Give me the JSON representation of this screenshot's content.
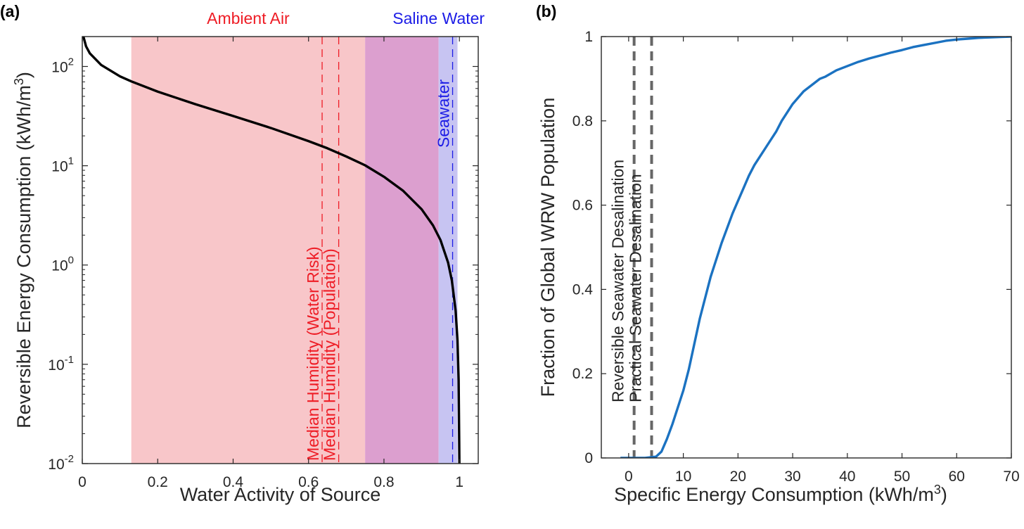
{
  "chart_data": [
    {
      "panel": "(a)",
      "type": "line",
      "xlabel": "Water Activity of Source",
      "ylabel_main": "Reversible Energy Consumption (kWh/m",
      "ylabel_sup": "3",
      "ylabel_close": ")",
      "yscale": "log",
      "xlim": [
        0,
        1.05
      ],
      "ylim": [
        0.01,
        200
      ],
      "xticks": [
        {
          "value": 0,
          "label": "0"
        },
        {
          "value": 0.2,
          "label": "0.2"
        },
        {
          "value": 0.4,
          "label": "0.4"
        },
        {
          "value": 0.6,
          "label": "0.6"
        },
        {
          "value": 0.8,
          "label": "0.8"
        },
        {
          "value": 1,
          "label": "1"
        }
      ],
      "yticks": [
        {
          "value": 100,
          "base": "10",
          "exp": "2"
        },
        {
          "value": 10,
          "base": "10",
          "exp": "1"
        },
        {
          "value": 1,
          "base": "10",
          "exp": "0"
        },
        {
          "value": 0.1,
          "base": "10",
          "exp": "-1"
        },
        {
          "value": 0.01,
          "base": "10",
          "exp": "-2"
        }
      ],
      "shaded_regions": [
        {
          "label": "Ambient Air",
          "from": 0.13,
          "to": 0.75,
          "color": "#f8c6c9"
        },
        {
          "label": "",
          "from": 0.75,
          "to": 0.945,
          "color": "#dc9fcf"
        },
        {
          "label": "Saline Water",
          "from": 0.945,
          "to": 0.995,
          "color": "#c7c4f2"
        }
      ],
      "region_labels": [
        {
          "text": "Ambient Air",
          "x": 0.44,
          "color": "#ee1c25"
        },
        {
          "text": "Saline Water",
          "x": 0.945,
          "color": "#1c1ce6"
        }
      ],
      "reference_lines": [
        {
          "label": "Median Humidity (Water Risk)",
          "x": 0.636,
          "color": "#ee1c25"
        },
        {
          "label": "Median Humidity (Population)",
          "x": 0.68,
          "color": "#ee1c25"
        },
        {
          "label": "Seawater",
          "x": 0.982,
          "color": "#1c1ce6"
        }
      ],
      "series": [
        {
          "color": "#000000",
          "x": [
            0.003,
            0.01,
            0.02,
            0.05,
            0.1,
            0.13,
            0.2,
            0.3,
            0.4,
            0.5,
            0.6,
            0.65,
            0.7,
            0.75,
            0.8,
            0.85,
            0.9,
            0.93,
            0.95,
            0.97,
            0.98,
            0.99,
            0.995,
            0.998,
            0.9995
          ],
          "y": [
            200,
            159.5,
            135.5,
            103.6,
            79.5,
            70.8,
            55.8,
            41.7,
            31.7,
            24.0,
            17.7,
            15.0,
            12.4,
            10.1,
            7.74,
            5.63,
            3.64,
            2.51,
            1.78,
            1.06,
            0.7,
            0.348,
            0.174,
            0.069,
            0.017
          ]
        }
      ]
    },
    {
      "panel": "(b)",
      "type": "line",
      "xlabel_main": "Specific Energy Consumption (kWh/m",
      "xlabel_sup": "3",
      "xlabel_close": ")",
      "ylabel": "Fraction of Global WRW Population",
      "xlim": [
        -5,
        70
      ],
      "ylim": [
        0,
        1
      ],
      "xticks": [
        {
          "value": 0,
          "label": "0"
        },
        {
          "value": 10,
          "label": "10"
        },
        {
          "value": 20,
          "label": "20"
        },
        {
          "value": 30,
          "label": "30"
        },
        {
          "value": 40,
          "label": "40"
        },
        {
          "value": 50,
          "label": "50"
        },
        {
          "value": 60,
          "label": "60"
        },
        {
          "value": 70,
          "label": "70"
        }
      ],
      "yticks": [
        {
          "value": 0,
          "label": "0"
        },
        {
          "value": 0.2,
          "label": "0.2"
        },
        {
          "value": 0.4,
          "label": "0.4"
        },
        {
          "value": 0.6,
          "label": "0.6"
        },
        {
          "value": 0.8,
          "label": "0.8"
        },
        {
          "value": 1,
          "label": "1"
        }
      ],
      "reference_lines": [
        {
          "label": "Reversible Seawater Desalination",
          "x": 1.0,
          "color": "#666666"
        },
        {
          "label": "Practical Seawater Desalination",
          "x": 4.2,
          "color": "#666666"
        }
      ],
      "series": [
        {
          "color": "#1b72c1",
          "x": [
            -1.5,
            3.0,
            5.0,
            6.0,
            7.0,
            8.0,
            9.0,
            10.0,
            11.0,
            12.0,
            13.0,
            14.0,
            15.0,
            16.0,
            17.0,
            18.0,
            19.0,
            20.0,
            21.0,
            22.0,
            23.0,
            24.0,
            25.0,
            26.0,
            27.0,
            28.0,
            29.0,
            30.0,
            31.0,
            32.0,
            33.0,
            34.0,
            35.0,
            36.0,
            38.0,
            40.0,
            42.0,
            44.0,
            46.0,
            48.0,
            50.0,
            52.0,
            54.0,
            56.0,
            58.0,
            60.0,
            62.0,
            64.0,
            66.0,
            68.0,
            70.0
          ],
          "y": [
            0,
            0,
            0.003,
            0.015,
            0.045,
            0.08,
            0.12,
            0.16,
            0.21,
            0.27,
            0.33,
            0.38,
            0.43,
            0.47,
            0.51,
            0.545,
            0.58,
            0.61,
            0.64,
            0.67,
            0.695,
            0.715,
            0.735,
            0.755,
            0.775,
            0.8,
            0.82,
            0.84,
            0.855,
            0.87,
            0.88,
            0.89,
            0.9,
            0.905,
            0.92,
            0.93,
            0.94,
            0.948,
            0.955,
            0.962,
            0.968,
            0.975,
            0.98,
            0.985,
            0.99,
            0.993,
            0.995,
            0.997,
            0.998,
            0.999,
            1.0
          ]
        }
      ]
    }
  ]
}
